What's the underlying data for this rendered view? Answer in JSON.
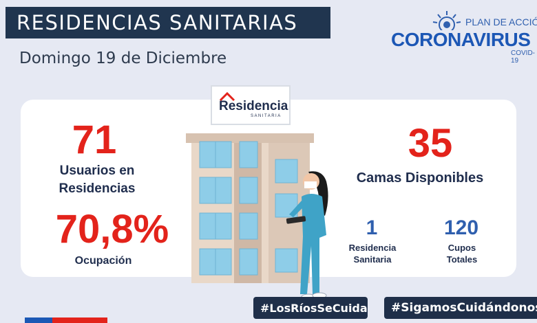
{
  "header": {
    "title": "RESIDENCIAS SANITARIAS",
    "date": "Domingo 19 de Diciembre"
  },
  "logo": {
    "plan": "PLAN DE ACCIÓN",
    "brand": "CORONAVIRUS",
    "sub": "COVID-19"
  },
  "sign": {
    "name": "Residencia",
    "sub": "SANITARIA"
  },
  "stats": {
    "usuarios_value": "71",
    "usuarios_label_1": "Usuarios en",
    "usuarios_label_2": "Residencias",
    "ocupacion_value": "70,8%",
    "ocupacion_label": "Ocupación",
    "camas_value": "35",
    "camas_label": "Camas Disponibles",
    "residencias_value": "1",
    "residencias_label_1": "Residencia",
    "residencias_label_2": "Sanitaria",
    "cupos_value": "120",
    "cupos_label_1": "Cupos",
    "cupos_label_2": "Totales"
  },
  "hashtags": {
    "first": "#LosRíosSeCuida",
    "second": "#SigamosCuidándonos"
  },
  "colors": {
    "accent_red": "#e3231b",
    "navy": "#20354f",
    "brand_blue": "#1c57b5",
    "background": "#e6e9f3"
  }
}
